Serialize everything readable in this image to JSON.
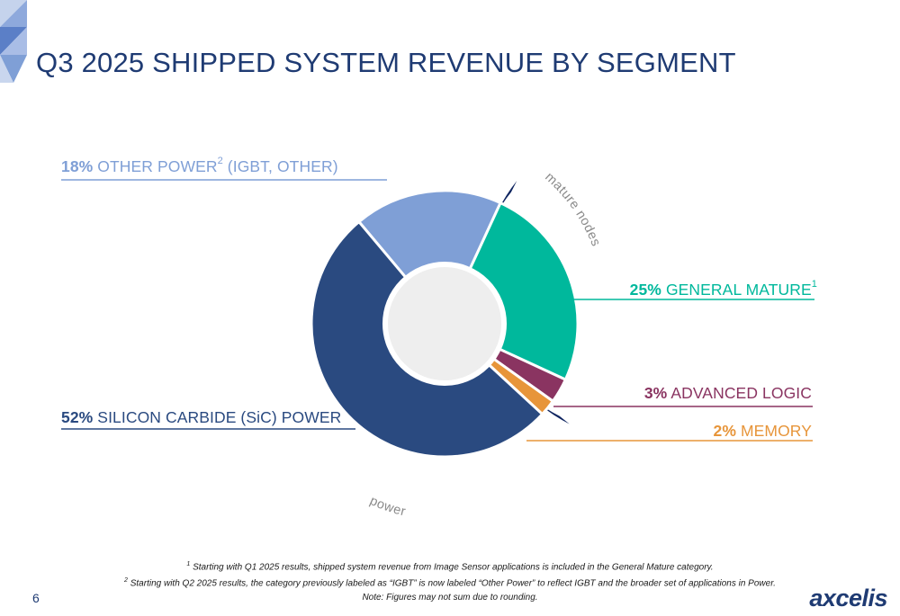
{
  "title": "Q3 2025 SHIPPED SYSTEM REVENUE BY SEGMENT",
  "chart_data": {
    "type": "pie",
    "variant": "donut",
    "categories": [
      "Other Power (IGBT, Other)",
      "General Mature",
      "Advanced Logic",
      "Memory",
      "Silicon Carbide (SiC) Power"
    ],
    "values": [
      18,
      25,
      3,
      2,
      52
    ],
    "slices": [
      {
        "pct": "18%",
        "name": "OTHER POWER",
        "sup": "2",
        "suffix": " (IGBT, OTHER)",
        "color": "#7f9fd6"
      },
      {
        "pct": "25%",
        "name": "GENERAL MATURE",
        "sup": "1",
        "suffix": "",
        "color": "#00b89c"
      },
      {
        "pct": "3%",
        "name": "ADVANCED LOGIC",
        "sup": "",
        "suffix": "",
        "color": "#8a3461"
      },
      {
        "pct": "2%",
        "name": "MEMORY",
        "sup": "",
        "suffix": "",
        "color": "#e7953a"
      },
      {
        "pct": "52%",
        "name": "SILICON CARBIDE (SiC) POWER",
        "sup": "",
        "suffix": "",
        "color": "#2a4a80"
      }
    ],
    "groups": [
      {
        "label": "mature nodes",
        "segments": [
          1,
          2,
          3
        ]
      },
      {
        "label": "power",
        "segments": [
          0,
          4
        ]
      }
    ],
    "colors": {
      "ring_gray": "#bdbdbd",
      "ring_navy": "#0f2560",
      "hole": "#eeeeee"
    }
  },
  "footnotes": {
    "note1": {
      "sup": "1",
      "text": "Starting with Q1 2025 results, shipped system revenue from Image Sensor applications is included in the General Mature category."
    },
    "note2": {
      "sup": "2",
      "text": "Starting with Q2 2025 results, the category previously labeled as “IGBT” is now labeled “Other Power” to reflect IGBT and the broader set of applications in Power."
    },
    "note3": "Note: Figures may not sum due to rounding."
  },
  "page_number": "6",
  "logo_text": "axcelis",
  "colors": {
    "title": "#1f3b73",
    "accent": "#1f3b73"
  }
}
